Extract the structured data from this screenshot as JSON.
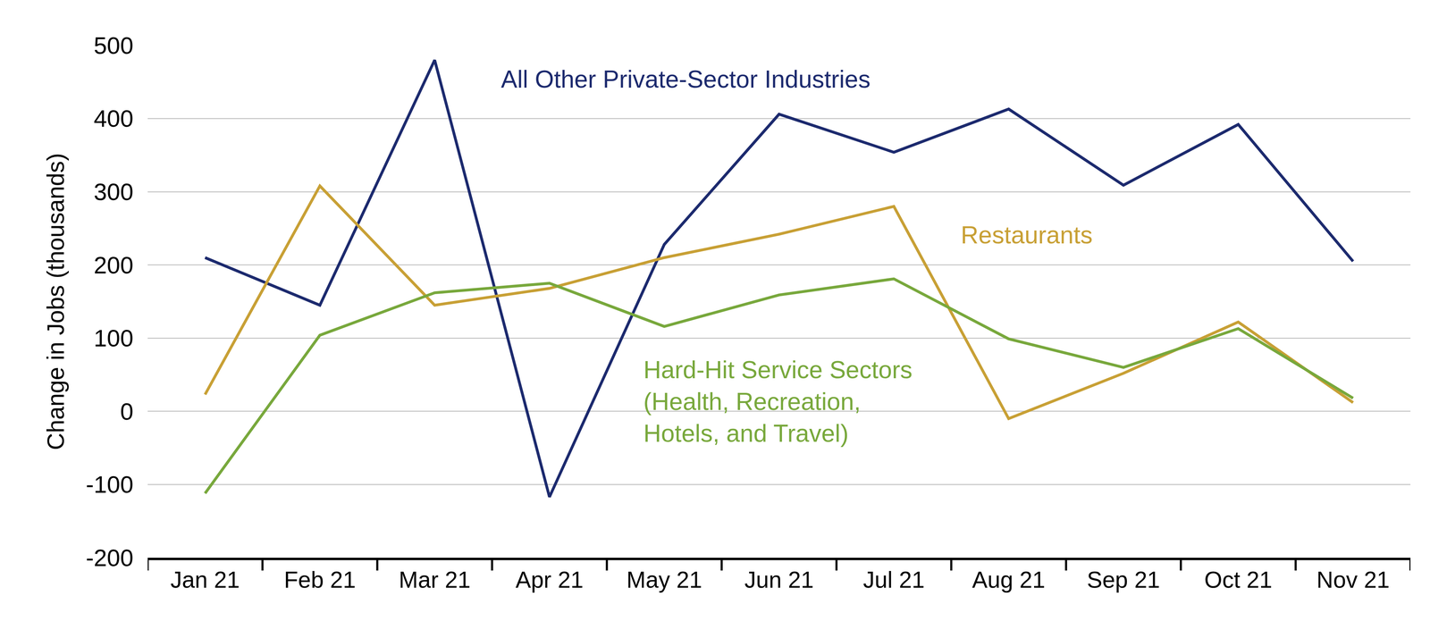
{
  "chart_data": {
    "type": "line",
    "ylabel": "Change in Jobs (thousands)",
    "categories": [
      "Jan 21",
      "Feb 21",
      "Mar 21",
      "Apr 21",
      "May 21",
      "Jun 21",
      "Jul 21",
      "Aug 21",
      "Sep 21",
      "Oct 21",
      "Nov 21"
    ],
    "series": [
      {
        "name": "All Other Private-Sector Industries",
        "color": "#1c2a6e",
        "values": [
          210,
          145,
          480,
          -117,
          228,
          406,
          354,
          413,
          309,
          392,
          205
        ]
      },
      {
        "name": "Restaurants",
        "color": "#c8a035",
        "values": [
          23,
          308,
          145,
          168,
          210,
          242,
          280,
          -10,
          52,
          122,
          12
        ]
      },
      {
        "name": "Hard-Hit Service Sectors\n(Health, Recreation,\nHotels, and Travel)",
        "color": "#78a83c",
        "values": [
          -112,
          104,
          162,
          175,
          116,
          159,
          181,
          99,
          60,
          113,
          18
        ]
      }
    ],
    "ylim": [
      -200,
      500
    ],
    "yticks": [
      -200,
      -100,
      0,
      100,
      200,
      300,
      400,
      500
    ],
    "grid": true
  }
}
